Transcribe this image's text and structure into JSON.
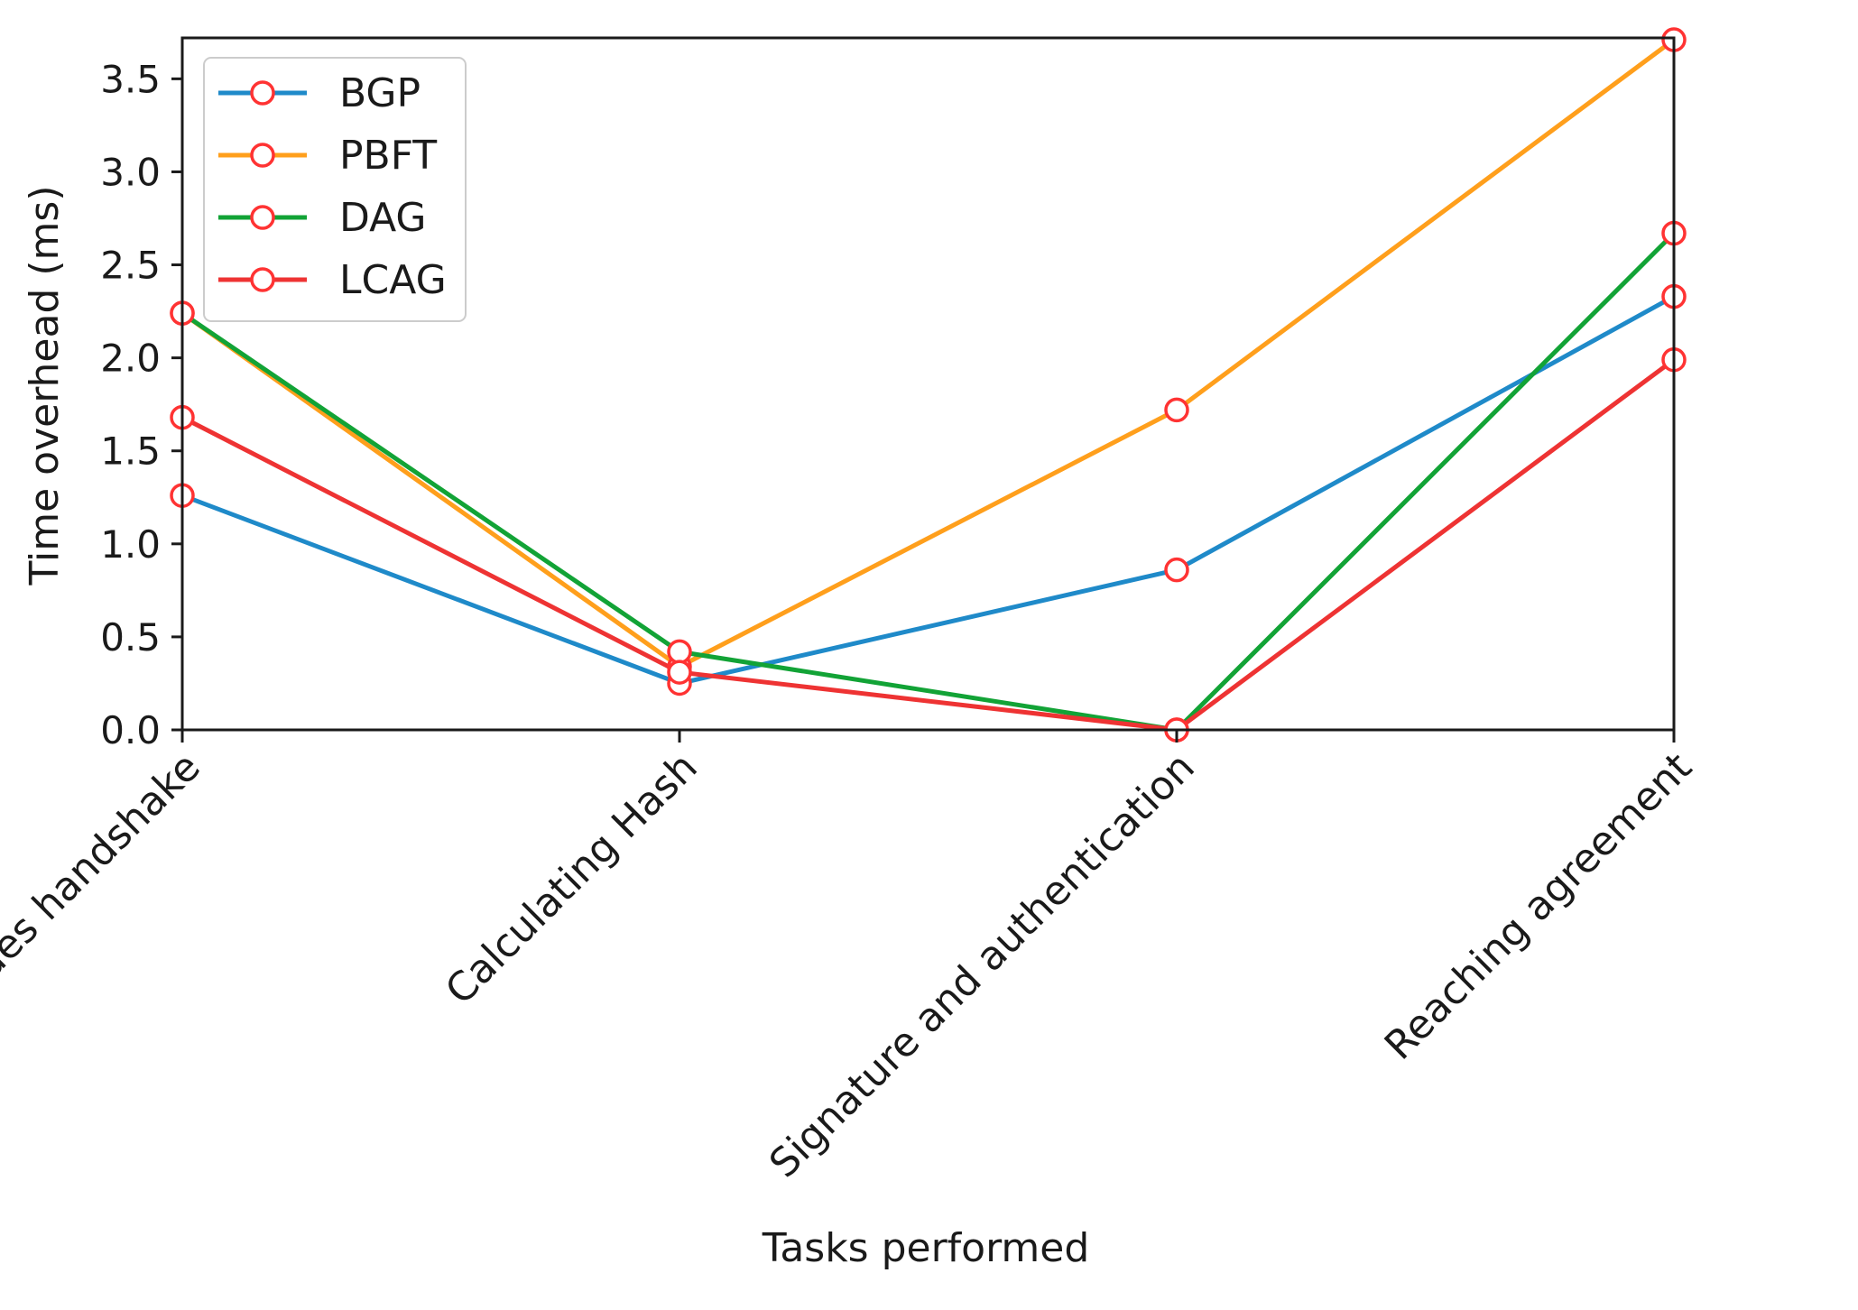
{
  "chart_data": {
    "type": "line",
    "title": "",
    "xlabel": "Tasks performed",
    "ylabel": "Time overhead (ms)",
    "categories": [
      "Nodes handshake",
      "Calculating Hash",
      "Signature and authentication",
      "Reaching agreement"
    ],
    "ylim": [
      0,
      3.72
    ],
    "yticks": [
      0.0,
      0.5,
      1.0,
      1.5,
      2.0,
      2.5,
      3.0,
      3.5
    ],
    "ytick_labels": [
      "0.0",
      "0.5",
      "1.0",
      "1.5",
      "2.0",
      "2.5",
      "3.0",
      "3.5"
    ],
    "grid": false,
    "legend_position": "top-left",
    "marker_edge_color": "#ff3333",
    "series": [
      {
        "name": "BGP",
        "color": "#1f8ac9",
        "values": [
          1.26,
          0.25,
          0.86,
          2.33
        ]
      },
      {
        "name": "PBFT",
        "color": "#ff9f1c",
        "values": [
          2.24,
          0.34,
          1.72,
          3.71
        ]
      },
      {
        "name": "DAG",
        "color": "#12a336",
        "values": [
          2.24,
          0.42,
          0.0,
          2.67
        ]
      },
      {
        "name": "LCAG",
        "color": "#ee3333",
        "values": [
          1.68,
          0.31,
          0.0,
          1.99
        ]
      }
    ]
  }
}
